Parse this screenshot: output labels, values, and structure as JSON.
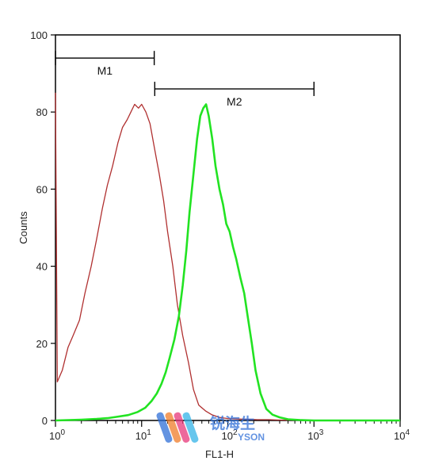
{
  "chart_data": {
    "type": "line",
    "xlabel": "FL1-H",
    "ylabel": "Counts",
    "x_scale": "log",
    "xlim": [
      1,
      10000
    ],
    "ylim": [
      0,
      100
    ],
    "x_ticks": [
      {
        "value": 1,
        "base": "10",
        "exp": "0"
      },
      {
        "value": 10,
        "base": "10",
        "exp": "1"
      },
      {
        "value": 100,
        "base": "10",
        "exp": "2"
      },
      {
        "value": 1000,
        "base": "10",
        "exp": "3"
      },
      {
        "value": 10000,
        "base": "10",
        "exp": "4"
      }
    ],
    "y_ticks": [
      0,
      20,
      40,
      60,
      80,
      100
    ],
    "grid": false,
    "series": [
      {
        "color": "#b03030",
        "x": [
          1.0,
          1.05,
          1.2,
          1.4,
          1.6,
          1.9,
          2.2,
          2.6,
          3.0,
          3.5,
          4.0,
          4.6,
          5.3,
          6.0,
          6.8,
          7.5,
          8.3,
          9.2,
          10.0,
          11.2,
          12.5,
          14.0,
          16.0,
          18.0,
          20.0,
          23.0,
          26.0,
          30.0,
          35.0,
          40.0,
          46.0,
          55.0,
          65.0,
          80.0,
          100.0,
          130.0,
          170.0,
          220.0,
          300.0,
          400.0,
          600.0,
          1000.0,
          3000.0,
          10000.0
        ],
        "y": [
          85,
          10,
          13,
          19,
          22,
          26,
          33,
          40,
          47,
          55,
          61,
          66,
          72,
          76,
          78,
          80,
          82,
          81,
          82,
          80,
          77,
          71,
          64,
          57,
          49,
          40,
          30,
          22,
          15,
          8,
          4,
          2.5,
          1.5,
          0.8,
          0.5,
          0.4,
          0.3,
          0.2,
          0.2,
          0.1,
          0.1,
          0,
          0,
          0
        ]
      },
      {
        "color": "#22e322",
        "x": [
          1.0,
          2.0,
          3.0,
          4.0,
          5.0,
          7.0,
          9.0,
          11.0,
          13.0,
          15.0,
          17.0,
          19.0,
          21.0,
          24.0,
          27.0,
          30.0,
          33.0,
          36.0,
          40.0,
          44.0,
          48.0,
          52.0,
          56.0,
          60.0,
          66.0,
          72.0,
          80.0,
          88.0,
          96.0,
          105.0,
          115.0,
          125.0,
          140.0,
          155.0,
          170.0,
          190.0,
          210.0,
          240.0,
          280.0,
          330.0,
          400.0,
          500.0,
          700.0,
          1000.0,
          2000.0,
          5000.0,
          10000.0
        ],
        "y": [
          0,
          0.2,
          0.4,
          0.6,
          0.9,
          1.4,
          2.2,
          3.3,
          5.0,
          7.0,
          9.5,
          12.5,
          16.0,
          21.0,
          27.0,
          35.0,
          44.0,
          54.0,
          64.0,
          73.0,
          79.0,
          81.0,
          82.0,
          79.0,
          73.0,
          66.0,
          60.0,
          56.0,
          51.0,
          49.0,
          45.0,
          42.0,
          37.0,
          33.0,
          27.0,
          20.0,
          13.0,
          7.0,
          3.0,
          1.5,
          0.8,
          0.3,
          0.1,
          0,
          0,
          0,
          0
        ]
      }
    ],
    "markers": [
      {
        "label": "M1",
        "from": 1.0,
        "to": 14.0,
        "y": 94
      },
      {
        "label": "M2",
        "from": 14.2,
        "to": 1000.0,
        "y": 86
      }
    ]
  },
  "watermark": {
    "cn_text": "锐海生",
    "en_text": "YSON",
    "colors": [
      "#2f6fd8",
      "#f07d2a",
      "#e8387a",
      "#33b3e8"
    ]
  }
}
